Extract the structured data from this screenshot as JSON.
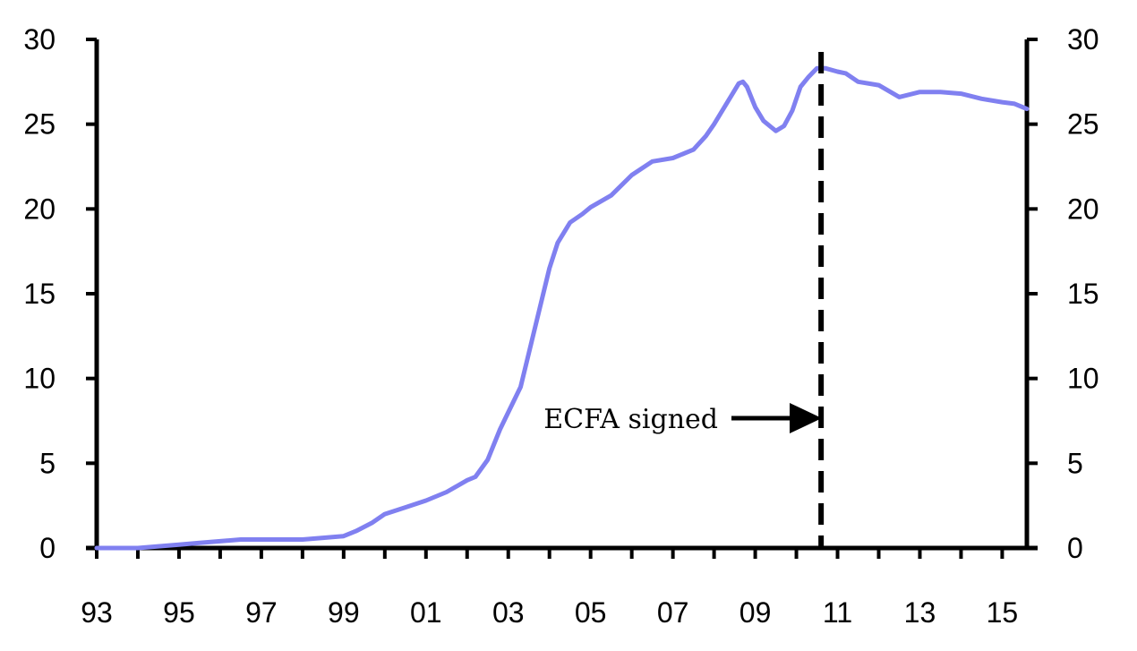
{
  "chart_data": {
    "type": "line",
    "title": "",
    "xlabel": "",
    "ylabel": "",
    "xlim": [
      1993.0,
      2015.6
    ],
    "ylim": [
      0,
      30
    ],
    "yticks": [
      0,
      5,
      10,
      15,
      20,
      25,
      30
    ],
    "xticks": [
      {
        "label": "93",
        "value": 1993
      },
      {
        "label": "95",
        "value": 1995
      },
      {
        "label": "97",
        "value": 1997
      },
      {
        "label": "99",
        "value": 1999
      },
      {
        "label": "01",
        "value": 2001
      },
      {
        "label": "03",
        "value": 2003
      },
      {
        "label": "05",
        "value": 2005
      },
      {
        "label": "07",
        "value": 2007
      },
      {
        "label": "09",
        "value": 2009
      },
      {
        "label": "11",
        "value": 2011
      },
      {
        "label": "13",
        "value": 2013
      },
      {
        "label": "15",
        "value": 2015
      }
    ],
    "grid": false,
    "series": [
      {
        "color": "#8080f0",
        "x": [
          1993.0,
          1994.0,
          1994.5,
          1995.0,
          1995.5,
          1996.0,
          1996.5,
          1997.0,
          1997.5,
          1998.0,
          1998.5,
          1999.0,
          1999.3,
          1999.7,
          2000.0,
          2000.5,
          2001.0,
          2001.5,
          2002.0,
          2002.2,
          2002.5,
          2002.8,
          2003.0,
          2003.3,
          2003.5,
          2003.8,
          2004.0,
          2004.2,
          2004.5,
          2004.8,
          2005.0,
          2005.5,
          2006.0,
          2006.5,
          2007.0,
          2007.5,
          2007.8,
          2008.0,
          2008.3,
          2008.6,
          2008.7,
          2008.8,
          2009.0,
          2009.2,
          2009.4,
          2009.5,
          2009.7,
          2009.9,
          2010.1,
          2010.3,
          2010.5,
          2010.7,
          2011.0,
          2011.2,
          2011.5,
          2012.0,
          2012.5,
          2013.0,
          2013.5,
          2014.0,
          2014.5,
          2015.0,
          2015.3,
          2015.6
        ],
        "y": [
          0.0,
          0.0,
          0.1,
          0.2,
          0.3,
          0.4,
          0.5,
          0.5,
          0.5,
          0.5,
          0.6,
          0.7,
          1.0,
          1.5,
          2.0,
          2.4,
          2.8,
          3.3,
          4.0,
          4.2,
          5.2,
          7.0,
          8.0,
          9.5,
          11.5,
          14.5,
          16.5,
          18.0,
          19.2,
          19.7,
          20.1,
          20.8,
          22.0,
          22.8,
          23.0,
          23.5,
          24.3,
          25.0,
          26.2,
          27.4,
          27.5,
          27.2,
          26.0,
          25.2,
          24.8,
          24.6,
          24.9,
          25.8,
          27.2,
          27.8,
          28.3,
          28.3,
          28.1,
          28.0,
          27.5,
          27.3,
          26.6,
          26.9,
          26.9,
          26.8,
          26.5,
          26.3,
          26.2,
          25.9
        ]
      }
    ],
    "annotations": [
      {
        "text": "ECFA signed",
        "x": 2010.6
      }
    ]
  }
}
